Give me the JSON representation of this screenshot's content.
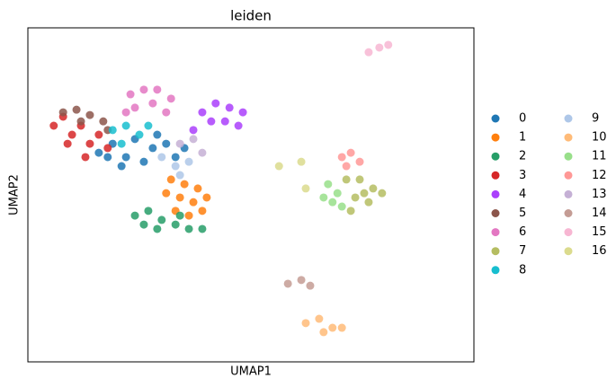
{
  "chart_data": {
    "type": "scatter",
    "title": "leiden",
    "xlabel": "UMAP1",
    "ylabel": "UMAP2",
    "xlim": [
      0,
      100
    ],
    "ylim": [
      0,
      100
    ],
    "series": [
      {
        "name": "0",
        "color": "#1f77b4",
        "x": [
          15.9,
          19.0,
          22.0,
          24.0,
          26.0,
          28.0,
          31.0,
          33.1,
          21.0,
          29.0,
          35.1,
          17.9
        ],
        "values": [
          62.6,
          65.3,
          61.3,
          66.7,
          59.9,
          64.0,
          65.3,
          61.3,
          58.6,
          68.0,
          64.0,
          61.3
        ]
      },
      {
        "name": "1",
        "color": "#ff7f0e",
        "x": [
          32.1,
          35.1,
          38.1,
          31.0,
          34.1,
          37.1,
          40.1,
          33.1,
          36.1,
          39.1
        ],
        "values": [
          54.6,
          53.2,
          51.9,
          50.5,
          49.2,
          47.8,
          49.2,
          45.2,
          43.8,
          45.2
        ]
      },
      {
        "name": "2",
        "color": "#279e68",
        "x": [
          24.0,
          27.0,
          30.0,
          33.1,
          36.1,
          26.0,
          29.0,
          39.1,
          34.1
        ],
        "values": [
          43.8,
          45.2,
          42.5,
          41.1,
          39.8,
          41.1,
          39.8,
          39.8,
          43.8
        ]
      },
      {
        "name": "3",
        "color": "#d62728",
        "x": [
          5.8,
          7.9,
          9.9,
          11.9,
          13.9,
          15.9,
          12.9,
          8.9,
          17.9
        ],
        "values": [
          70.7,
          73.4,
          68.0,
          70.7,
          65.3,
          68.0,
          61.3,
          65.3,
          64.0
        ]
      },
      {
        "name": "4",
        "color": "#aa40fc",
        "x": [
          39.1,
          42.1,
          45.2,
          48.2,
          41.1,
          44.2,
          47.2,
          37.1
        ],
        "values": [
          74.7,
          77.4,
          76.1,
          74.7,
          72.0,
          72.0,
          70.7,
          69.4
        ]
      },
      {
        "name": "5",
        "color": "#8c564b",
        "x": [
          7.9,
          10.9,
          13.9,
          16.9,
          11.9,
          17.9
        ],
        "values": [
          74.7,
          75.5,
          73.9,
          72.0,
          72.0,
          69.4
        ]
      },
      {
        "name": "6",
        "color": "#e377c2",
        "x": [
          23.0,
          26.0,
          29.0,
          32.1,
          24.0,
          28.0,
          31.0,
          22.0
        ],
        "values": [
          80.1,
          81.5,
          81.5,
          78.8,
          76.1,
          77.4,
          74.7,
          74.7
        ]
      },
      {
        "name": "7",
        "color": "#b5bd61",
        "x": [
          71.4,
          74.4,
          77.4,
          79.4,
          73.4,
          76.4,
          72.4,
          75.4
        ],
        "values": [
          54.6,
          54.6,
          51.9,
          50.5,
          49.2,
          47.8,
          45.2,
          50.5
        ]
      },
      {
        "name": "8",
        "color": "#17becf",
        "x": [
          19.0,
          22.0,
          25.0,
          27.0,
          21.0
        ],
        "values": [
          69.4,
          70.7,
          68.0,
          70.7,
          65.3
        ]
      },
      {
        "name": "9",
        "color": "#aec7e8",
        "x": [
          30.0,
          33.1,
          36.1,
          34.1
        ],
        "values": [
          61.3,
          58.6,
          59.9,
          55.9
        ]
      },
      {
        "name": "10",
        "color": "#ffbb78",
        "x": [
          62.3,
          65.3,
          68.3,
          66.3,
          70.4
        ],
        "values": [
          11.6,
          12.9,
          10.2,
          8.9,
          10.2
        ]
      },
      {
        "name": "11",
        "color": "#98df8a",
        "x": [
          67.3,
          69.4,
          68.3,
          70.4,
          66.3
        ],
        "values": [
          53.2,
          50.5,
          47.8,
          46.5,
          49.2
        ]
      },
      {
        "name": "12",
        "color": "#ff9896",
        "x": [
          70.4,
          72.4,
          74.4,
          71.4
        ],
        "values": [
          61.3,
          62.6,
          59.9,
          58.6
        ]
      },
      {
        "name": "13",
        "color": "#c5b0d5",
        "x": [
          34.1,
          39.1,
          37.1
        ],
        "values": [
          65.3,
          62.6,
          66.7
        ]
      },
      {
        "name": "14",
        "color": "#c49c94",
        "x": [
          58.3,
          61.3,
          63.3
        ],
        "values": [
          23.4,
          24.5,
          22.8
        ]
      },
      {
        "name": "15",
        "color": "#f7b6d2",
        "x": [
          76.4,
          78.8,
          80.8
        ],
        "values": [
          92.7,
          94.1,
          94.9
        ]
      },
      {
        "name": "16",
        "color": "#dbdb8d",
        "x": [
          56.3,
          61.3,
          62.3
        ],
        "values": [
          58.6,
          59.9,
          51.9
        ]
      }
    ]
  }
}
